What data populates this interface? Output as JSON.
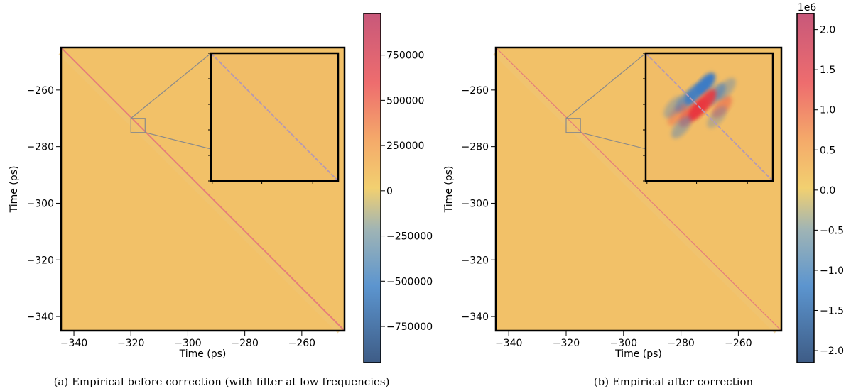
{
  "chart_data": [
    {
      "type": "heatmap",
      "caption": "(a) Empirical before correction (with filter at low frequencies)",
      "xlabel": "Time (ps)",
      "ylabel": "Time (ps)",
      "xlim": [
        -344.5,
        -245
      ],
      "ylim": [
        -245,
        -345
      ],
      "xticks": [
        "−340",
        "−320",
        "−300",
        "−280",
        "−260"
      ],
      "yticks": [
        "−260",
        "−280",
        "−300",
        "−320",
        "−340"
      ],
      "colorbar": {
        "range": [
          -950000,
          980000
        ],
        "ticks": [
          "750000",
          "500000",
          "250000",
          "0",
          "−250000",
          "−500000",
          "−750000"
        ],
        "multiplier": ""
      },
      "inset": {
        "x_range": [
          -320,
          -315
        ],
        "y_range": [
          -275,
          -270
        ],
        "pattern": "faint diagonal"
      },
      "colors": {
        "background": "#F2C168",
        "diagonal": "#E4777B",
        "inset_diagonal": "#B59AB3"
      }
    },
    {
      "type": "heatmap",
      "caption": "(b) Empirical after correction",
      "xlabel": "Time (ps)",
      "ylabel": "Time (ps)",
      "xlim": [
        -344.5,
        -245
      ],
      "ylim": [
        -245,
        -345
      ],
      "xticks": [
        "−340",
        "−320",
        "−300",
        "−280",
        "−260"
      ],
      "yticks": [
        "−260",
        "−280",
        "−300",
        "−320",
        "−340"
      ],
      "colorbar": {
        "range": [
          -2.15,
          2.2
        ],
        "ticks": [
          "2.0",
          "1.5",
          "1.0",
          "0.5",
          "0.0",
          "−0.5",
          "−1.0",
          "−1.5",
          "−2.0"
        ],
        "multiplier": "1e6"
      },
      "inset": {
        "x_range": [
          -320,
          -315
        ],
        "y_range": [
          -275,
          -270
        ],
        "pattern": "red-blue oscillating lobes along diagonal"
      },
      "colors": {
        "background": "#F2C168",
        "diagonal": "#E4777B",
        "inset_diagonal": "#B59AB3"
      }
    }
  ]
}
